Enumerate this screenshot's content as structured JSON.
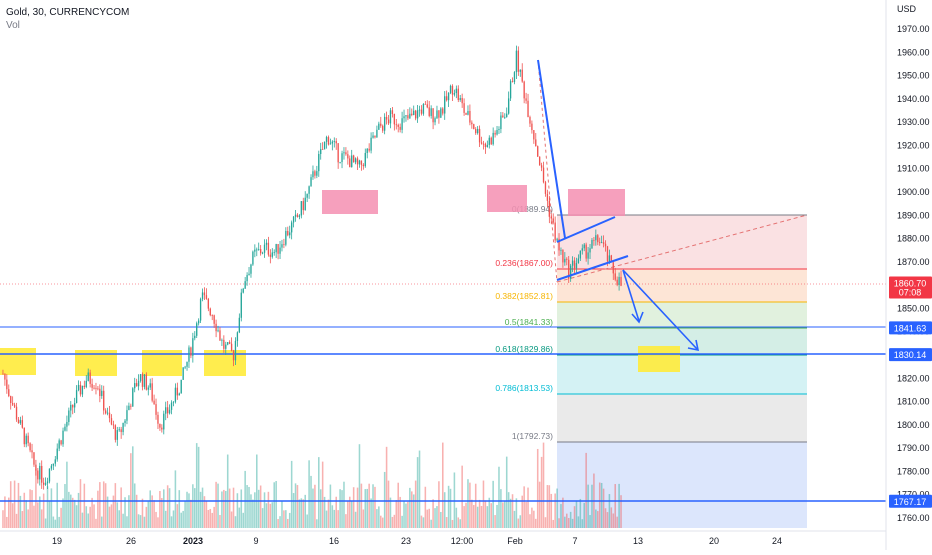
{
  "header": {
    "symbol_line": "Gold, 30, CURRENCYCOM",
    "sub_line": "Vol"
  },
  "price_axis": {
    "unit_label": "USD",
    "ticks": [
      "1970.00",
      "1960.00",
      "1950.00",
      "1940.00",
      "1930.00",
      "1920.00",
      "1910.00",
      "1900.00",
      "1890.00",
      "1880.00",
      "1870.00",
      "1860.00",
      "1850.00",
      "1840.00",
      "1830.00",
      "1820.00",
      "1810.00",
      "1800.00",
      "1790.00",
      "1780.00",
      "1770.00",
      "1760.00"
    ]
  },
  "time_axis": {
    "ticks": [
      {
        "label": "19",
        "bold": false
      },
      {
        "label": "26",
        "bold": false
      },
      {
        "label": "2023",
        "bold": true
      },
      {
        "label": "9",
        "bold": false
      },
      {
        "label": "16",
        "bold": false
      },
      {
        "label": "23",
        "bold": false
      },
      {
        "label": "12:00",
        "bold": false
      },
      {
        "label": "Feb",
        "bold": false
      },
      {
        "label": "7",
        "bold": false
      },
      {
        "label": "13",
        "bold": false
      },
      {
        "label": "20",
        "bold": false
      },
      {
        "label": "24",
        "bold": false
      }
    ]
  },
  "price_badges": [
    {
      "label": "1860.70",
      "sublabel": "07:08",
      "value": 1860.7,
      "color": "#f23645"
    },
    {
      "label": "1841.63",
      "value": 1841.63,
      "color": "#2962ff"
    },
    {
      "label": "1830.14",
      "value": 1830.14,
      "color": "#2962ff"
    },
    {
      "label": "1767.17",
      "value": 1767.17,
      "color": "#2962ff"
    }
  ],
  "fib_levels": [
    {
      "label": "0(1889.94)",
      "value": 1889.94,
      "text_color": "#787b86",
      "band_color": "#f8d7da"
    },
    {
      "label": "0.236(1867.00)",
      "value": 1867.0,
      "text_color": "#f23645",
      "band_color": "#fde0cf"
    },
    {
      "label": "0.382(1852.81)",
      "value": 1852.81,
      "text_color": "#f7b500",
      "band_color": "#dcefd8"
    },
    {
      "label": "0.5(1841.33)",
      "value": 1841.33,
      "text_color": "#4caf50",
      "band_color": "#cdebe2"
    },
    {
      "label": "0.618(1829.86)",
      "value": 1829.86,
      "text_color": "#089981",
      "band_color": "#cdf0f2"
    },
    {
      "label": "0.786(1813.53)",
      "value": 1813.53,
      "text_color": "#00bcd4",
      "band_color": "#e6e6e6"
    },
    {
      "label": "1(1792.73)",
      "value": 1792.73,
      "text_color": "#787b86",
      "band_color": "#d6e2fb"
    }
  ],
  "colors": {
    "up": "#26a69a",
    "down": "#ef5350",
    "trend_line": "#2962ff",
    "zone_pink": "#f48fb1",
    "zone_yellow": "#ffeb3b"
  },
  "chart_data": {
    "type": "candlestick",
    "instrument": "Gold",
    "timeframe": "30",
    "source": "CURRENCYCOM",
    "y_unit": "USD",
    "ylim": [
      1756,
      1978
    ],
    "grid": false,
    "last_price": 1860.7,
    "horizontal_levels": [
      1841.63,
      1830.14,
      1767.17
    ],
    "swing_high": 1960,
    "path": [
      [
        "Dec 16",
        1822
      ],
      [
        "Dec 17",
        1808
      ],
      [
        "Dec 18",
        1795
      ],
      [
        "Dec 19",
        1782
      ],
      [
        "Dec 20",
        1776
      ],
      [
        "Dec 21",
        1788
      ],
      [
        "Dec 22",
        1800
      ],
      [
        "Dec 23",
        1812
      ],
      [
        "Dec 24",
        1820
      ],
      [
        "Dec 25",
        1818
      ],
      [
        "Dec 26",
        1803
      ],
      [
        "Dec 27",
        1794
      ],
      [
        "Dec 28",
        1808
      ],
      [
        "Dec 29",
        1821
      ],
      [
        "Dec 30",
        1816
      ],
      [
        "Dec 31",
        1800
      ],
      [
        "Jan 1",
        1808
      ],
      [
        "Jan 2",
        1818
      ],
      [
        "Jan 3",
        1834
      ],
      [
        "Jan 4",
        1855
      ],
      [
        "Jan 5",
        1848
      ],
      [
        "Jan 6",
        1834
      ],
      [
        "Jan 7",
        1830
      ],
      [
        "Jan 8",
        1862
      ],
      [
        "Jan 9",
        1873
      ],
      [
        "Jan 10",
        1876
      ],
      [
        "Jan 11",
        1874
      ],
      [
        "Jan 12",
        1882
      ],
      [
        "Jan 13",
        1888
      ],
      [
        "Jan 14",
        1898
      ],
      [
        "Jan 15",
        1912
      ],
      [
        "Jan 16",
        1924
      ],
      [
        "Jan 17",
        1916
      ],
      [
        "Jan 18",
        1914
      ],
      [
        "Jan 19",
        1910
      ],
      [
        "Jan 20",
        1919
      ],
      [
        "Jan 21",
        1928
      ],
      [
        "Jan 22",
        1932
      ],
      [
        "Jan 23",
        1930
      ],
      [
        "Jan 24",
        1932
      ],
      [
        "Jan 25",
        1936
      ],
      [
        "Jan 26",
        1933
      ],
      [
        "Jan 27",
        1936
      ],
      [
        "Jan 28",
        1946
      ],
      [
        "Jan 29",
        1935
      ],
      [
        "Jan 30",
        1928
      ],
      [
        "Jan 31",
        1920
      ],
      [
        "Feb 1",
        1925
      ],
      [
        "Feb 1b",
        1934
      ],
      [
        "Feb 2",
        1958
      ],
      [
        "Feb 2b",
        1938
      ],
      [
        "Feb 3",
        1918
      ],
      [
        "Feb 3b",
        1895
      ],
      [
        "Feb 6",
        1876
      ],
      [
        "Feb 6b",
        1866
      ],
      [
        "Feb 7",
        1872
      ],
      [
        "Feb 8",
        1876
      ],
      [
        "Feb 9",
        1880
      ],
      [
        "Feb 10",
        1868
      ],
      [
        "Feb 10b",
        1860
      ]
    ]
  },
  "annotations": {
    "arrows": [
      {
        "from": [
          1862,
          "Feb 10"
        ],
        "to": [
          1844,
          "Feb 12"
        ]
      },
      {
        "from": [
          1862,
          "Feb 10"
        ],
        "to": [
          1830,
          "Feb 17"
        ]
      }
    ]
  }
}
